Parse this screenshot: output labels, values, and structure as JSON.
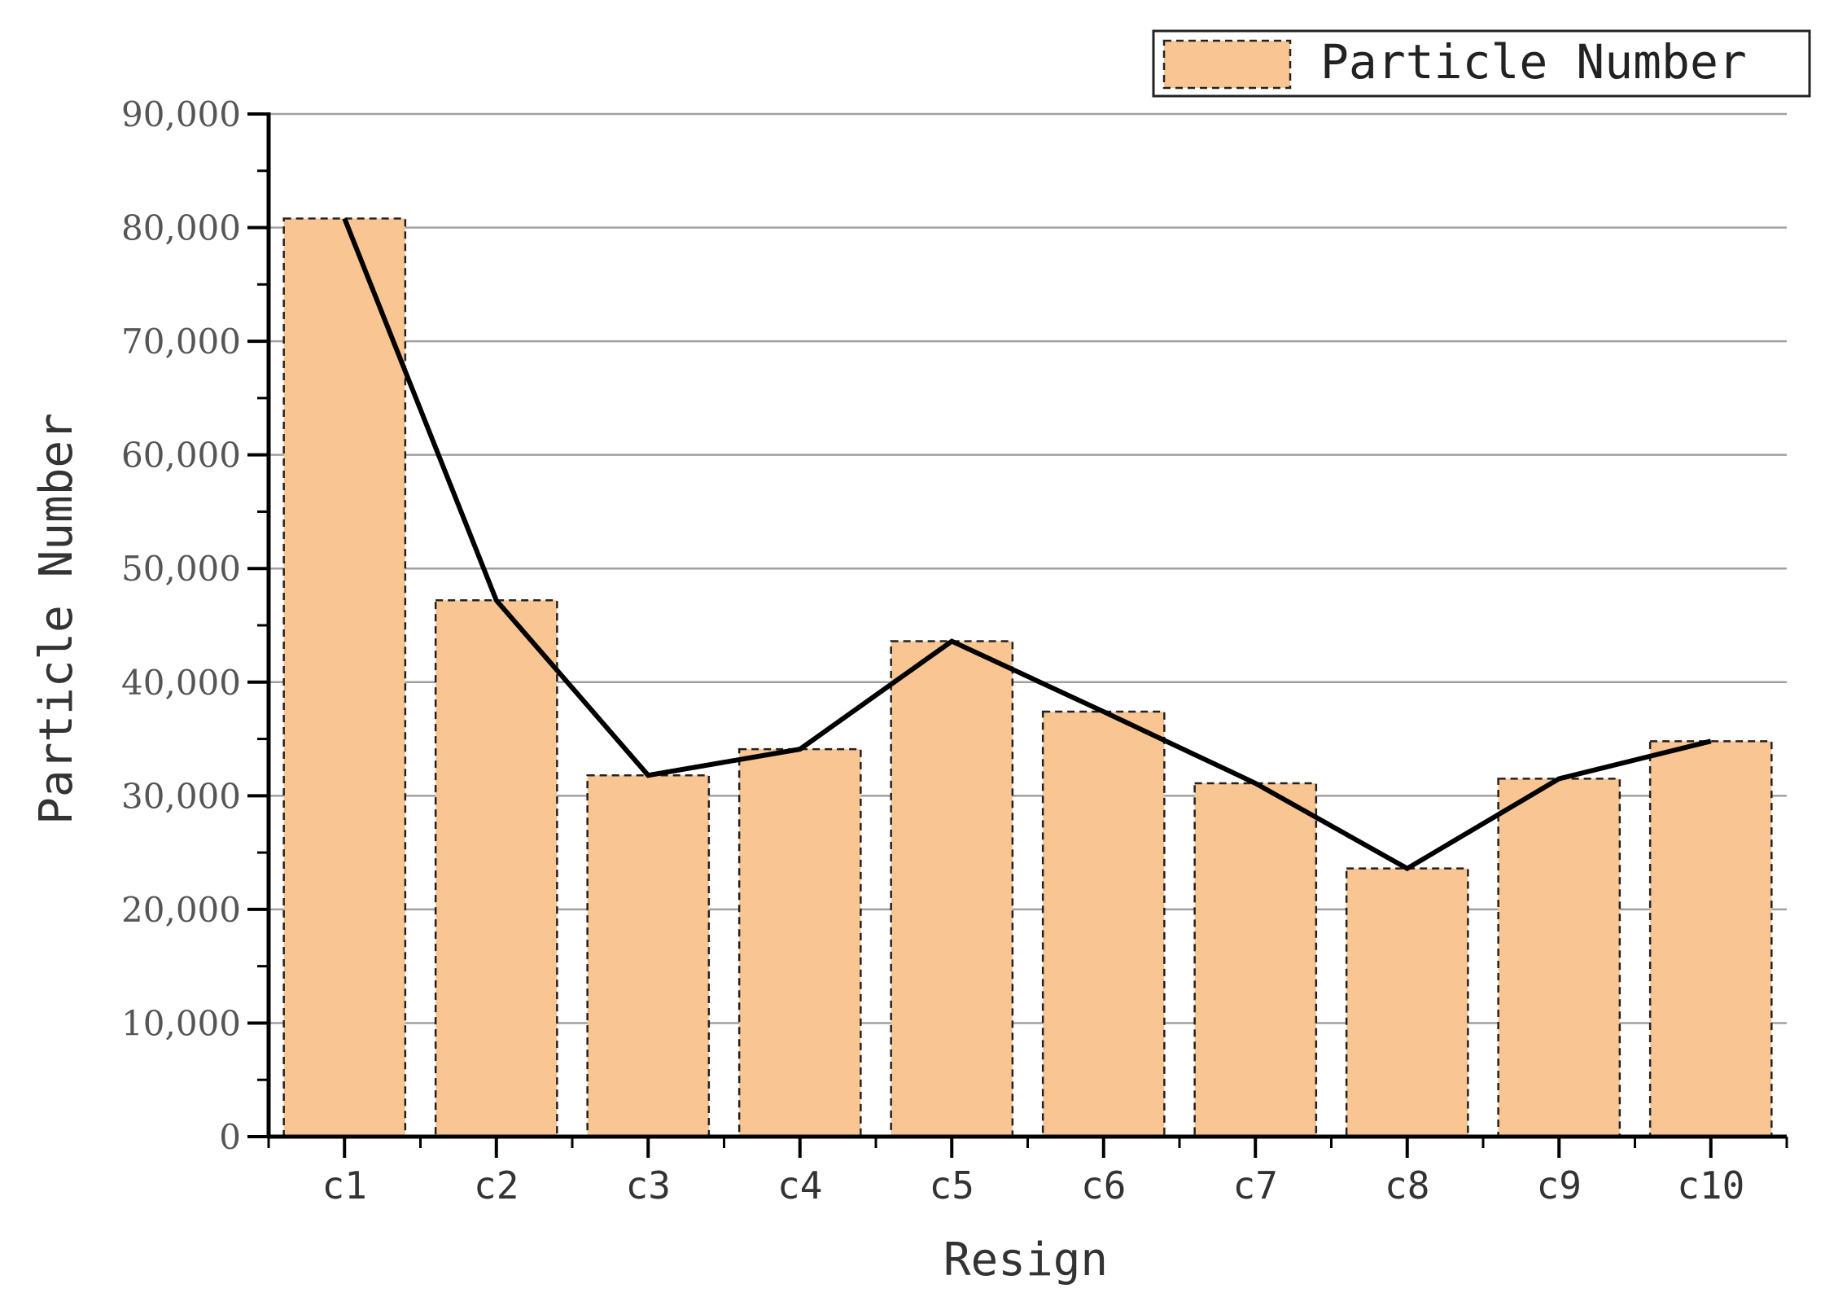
{
  "chart_data": {
    "type": "bar",
    "categories": [
      "c1",
      "c2",
      "c3",
      "c4",
      "c5",
      "c6",
      "c7",
      "c8",
      "c9",
      "c10"
    ],
    "series": [
      {
        "name": "Particle Number",
        "values": [
          80800,
          47200,
          31800,
          34100,
          43600,
          37400,
          31100,
          23600,
          31500,
          34800
        ]
      }
    ],
    "overlay_line": "connects bar tops",
    "xlabel": "Resign",
    "ylabel": "Particle Number",
    "ylim": [
      0,
      90000
    ],
    "yticks": [
      0,
      10000,
      20000,
      30000,
      40000,
      50000,
      60000,
      70000,
      80000,
      90000
    ],
    "ytick_labels": [
      "0",
      "10,000",
      "20,000",
      "30,000",
      "40,000",
      "50,000",
      "60,000",
      "70,000",
      "80,000",
      "90,000"
    ],
    "grid": "horizontal",
    "legend_position": "top-right",
    "colors": {
      "bar_fill": "#f9c592",
      "bar_edge": "#222222",
      "line": "#000000",
      "grid": "#a0a0a0"
    }
  }
}
